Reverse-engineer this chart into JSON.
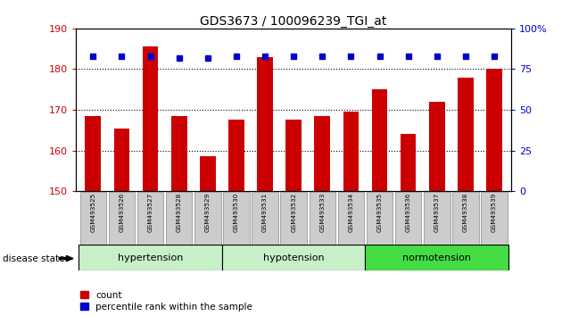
{
  "title": "GDS3673 / 100096239_TGI_at",
  "samples": [
    "GSM493525",
    "GSM493526",
    "GSM493527",
    "GSM493528",
    "GSM493529",
    "GSM493530",
    "GSM493531",
    "GSM493532",
    "GSM493533",
    "GSM493534",
    "GSM493535",
    "GSM493536",
    "GSM493537",
    "GSM493538",
    "GSM493539"
  ],
  "bar_values": [
    168.5,
    165.5,
    185.5,
    168.5,
    158.5,
    167.5,
    183.0,
    167.5,
    168.5,
    169.5,
    175.0,
    164.0,
    172.0,
    178.0,
    180.0
  ],
  "percentile_values": [
    83,
    83,
    83,
    82,
    82,
    83,
    83,
    83,
    83,
    83,
    83,
    83,
    83,
    83,
    83
  ],
  "bar_color": "#cc0000",
  "percentile_color": "#0000cc",
  "ylim_left": [
    150,
    190
  ],
  "ylim_right": [
    0,
    100
  ],
  "yticks_left": [
    150,
    160,
    170,
    180,
    190
  ],
  "yticks_right": [
    0,
    25,
    50,
    75,
    100
  ],
  "grid_lines": [
    160,
    170,
    180
  ],
  "groups": [
    {
      "label": "hypertension",
      "start": 0,
      "end": 4,
      "color": "#c8f0c8"
    },
    {
      "label": "hypotension",
      "start": 5,
      "end": 9,
      "color": "#c8f0c8"
    },
    {
      "label": "normotension",
      "start": 10,
      "end": 14,
      "color": "#44dd44"
    }
  ],
  "disease_state_label": "disease state",
  "legend_count_label": "count",
  "legend_percentile_label": "percentile rank within the sample",
  "background_color": "#ffffff",
  "tick_label_bg": "#cccccc"
}
